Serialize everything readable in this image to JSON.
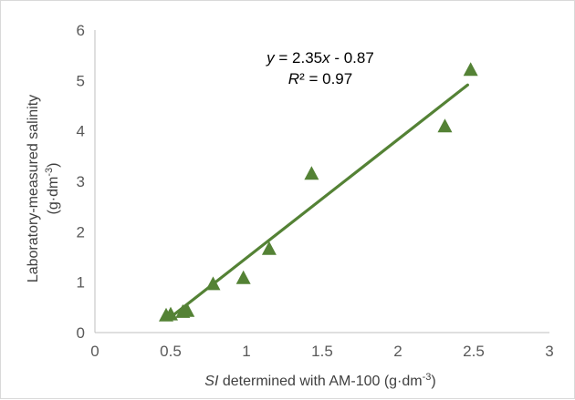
{
  "chart_data": {
    "type": "scatter",
    "xlim": [
      0,
      3
    ],
    "ylim": [
      0,
      6
    ],
    "x_ticks": [
      "0",
      "0.5",
      "1",
      "1.5",
      "2",
      "2.5",
      "3"
    ],
    "y_ticks": [
      "0",
      "1",
      "2",
      "3",
      "4",
      "5",
      "6"
    ],
    "xlabel": {
      "parts": [
        {
          "text": "SI",
          "style": "italic"
        },
        {
          "text": " determined with AM-100 (g·dm"
        },
        {
          "text": "-3",
          "style": "sup"
        },
        {
          "text": ")"
        }
      ]
    },
    "ylabel": {
      "line1": "Laboratory-measured salinity",
      "line2_parts": [
        {
          "text": "(g·dm"
        },
        {
          "text": "-3",
          "style": "sup"
        },
        {
          "text": ")"
        }
      ]
    },
    "series": [
      {
        "marker": "triangle",
        "color": "#548235",
        "x": [
          0.47,
          0.5,
          0.58,
          0.61,
          0.78,
          0.98,
          1.15,
          1.43,
          2.31,
          2.48
        ],
        "y": [
          0.33,
          0.35,
          0.4,
          0.42,
          0.95,
          1.07,
          1.65,
          3.14,
          4.08,
          5.2
        ]
      }
    ],
    "trendline": {
      "slope": 2.35,
      "intercept": -0.87,
      "x_range": [
        0.52,
        2.46
      ],
      "color": "#548235",
      "equation_parts": [
        {
          "text": "y",
          "style": "italic"
        },
        {
          "text": " = 2.35"
        },
        {
          "text": "x",
          "style": "italic"
        },
        {
          "text": " - 0.87"
        }
      ],
      "r2_parts": [
        {
          "text": "R",
          "style": "italic"
        },
        {
          "text": "² = 0.97"
        }
      ]
    },
    "grid": false,
    "legend": "none"
  }
}
